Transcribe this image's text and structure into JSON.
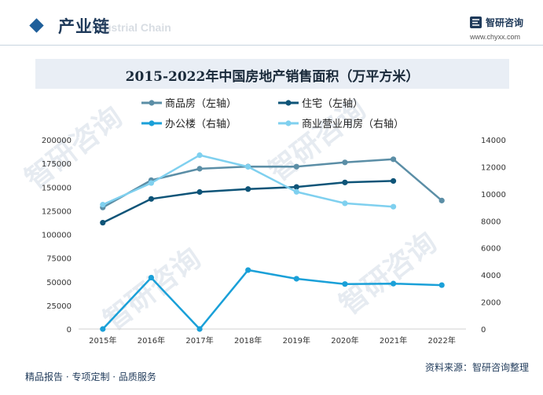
{
  "header": {
    "title": "产业链",
    "subtitle": "Industrial Chain",
    "logo_name": "智研咨询",
    "logo_url": "www.chyxx.com"
  },
  "chart_data": {
    "type": "line",
    "title": "2015-2022年中国房地产销售面积（万平方米）",
    "categories": [
      "2015年",
      "2016年",
      "2017年",
      "2018年",
      "2019年",
      "2020年",
      "2021年",
      "2022年"
    ],
    "y_left": {
      "ylim": [
        0,
        200000
      ],
      "ticks": [
        0,
        25000,
        50000,
        75000,
        100000,
        125000,
        150000,
        175000,
        200000
      ]
    },
    "y_right": {
      "ylim": [
        0,
        14000
      ],
      "ticks": [
        0,
        2000,
        4000,
        6000,
        8000,
        10000,
        12000,
        14000
      ]
    },
    "series": [
      {
        "name": "商品房（左轴）",
        "axis": "left",
        "color": "#5b8ea6",
        "values": [
          128500,
          157300,
          169400,
          171700,
          171600,
          176100,
          179400,
          135800
        ]
      },
      {
        "name": "住宅（左轴）",
        "axis": "left",
        "color": "#0e5478",
        "values": [
          112400,
          137500,
          144800,
          147900,
          150100,
          154900,
          156500,
          null
        ]
      },
      {
        "name": "办公楼（右轴）",
        "axis": "right",
        "color": "#1aa0d8",
        "values": [
          0,
          3800,
          0,
          4360,
          3720,
          3330,
          3360,
          3250
        ]
      },
      {
        "name": "商业营业用房（右轴）",
        "axis": "right",
        "color": "#7fd0ef",
        "values": [
          9200,
          10800,
          12860,
          12000,
          10150,
          9300,
          9050,
          null
        ]
      }
    ]
  },
  "footer": {
    "left": "精品报告 · 专项定制 · 品质服务",
    "right": "资料来源：智研咨询整理"
  },
  "watermark": "智研咨询"
}
